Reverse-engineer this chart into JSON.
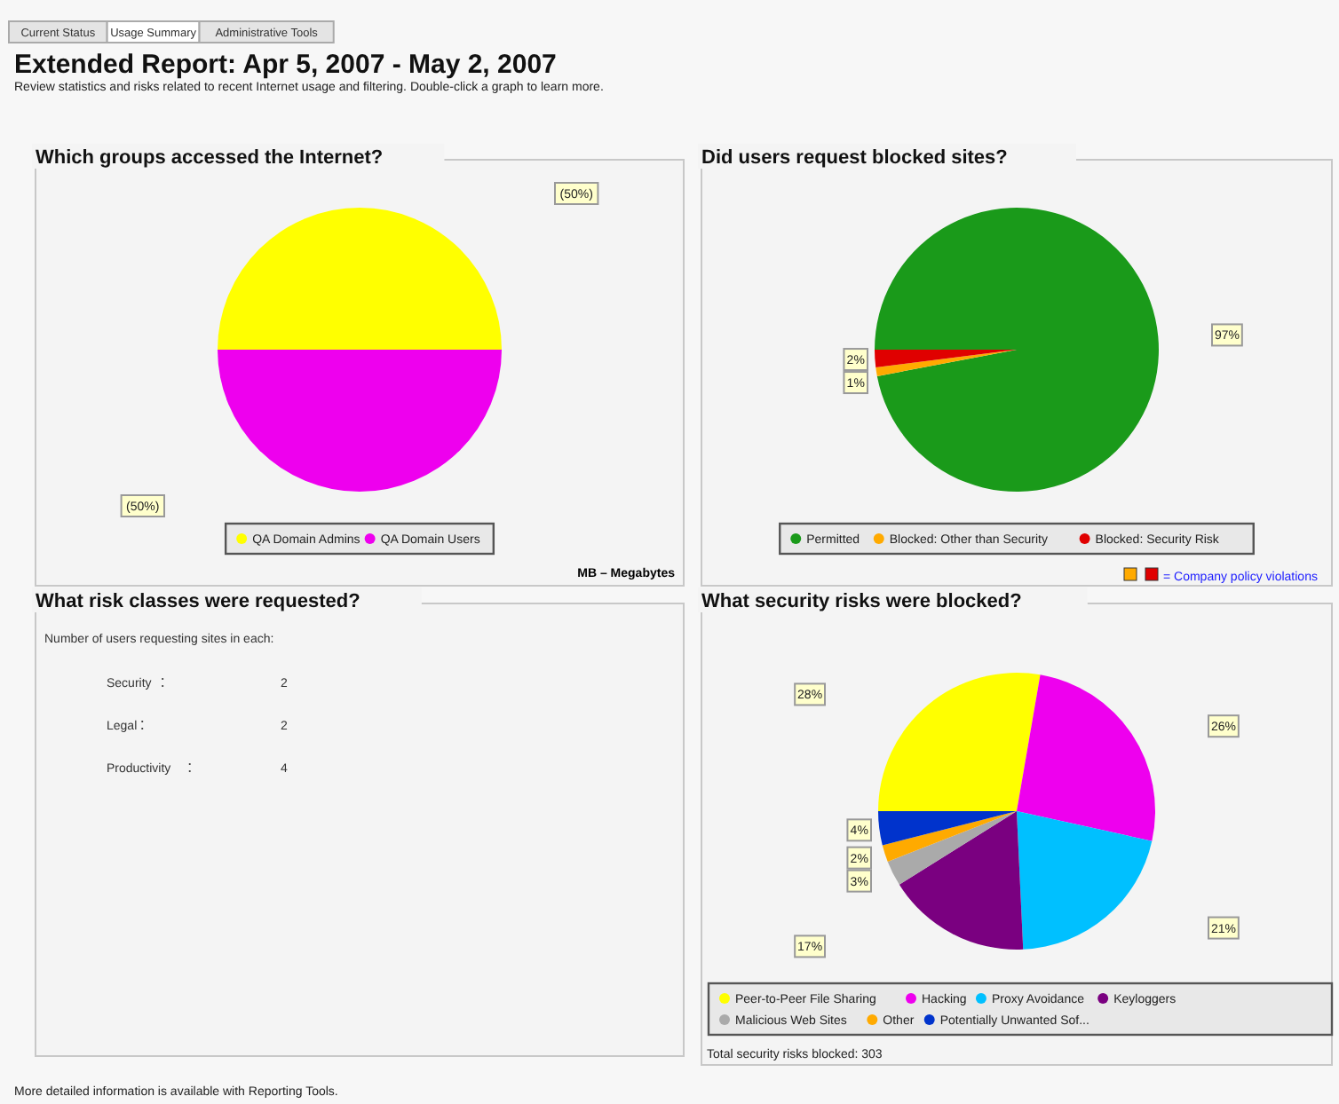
{
  "chart_data": [
    {
      "type": "other",
      "title": "Extended Report: Apr 5, 2007 - May 2, 2007",
      "subtitle": "Review statistics and risks related to recent Internet usage and filtering. Double-click a graph to learn more.",
      "annotations": [
        "Current Status",
        "Usage Summary",
        "Administrative Tools",
        "More detailed information is available with Reporting Tools."
      ]
    },
    {
      "type": "pie",
      "title": "Which groups accessed the Internet?",
      "categories": [
        "QA Domain Admins",
        "QA Domain Users"
      ],
      "values": [
        50,
        50
      ],
      "value_labels": [
        "(50%)",
        "(50%)"
      ],
      "colors": [
        "#ffff00",
        "#ee00ee"
      ],
      "legend": "bottom",
      "annotations": [
        "MB – Megabytes"
      ]
    },
    {
      "type": "pie",
      "title": "Did users request blocked sites?",
      "categories": [
        "Permitted",
        "Blocked: Other than Security",
        "Blocked: Security Risk"
      ],
      "values": [
        97,
        1,
        2
      ],
      "value_labels": [
        "97%",
        "1%",
        "2%"
      ],
      "colors": [
        "#1a9a1a",
        "#ffaa00",
        "#e00000"
      ],
      "legend": "bottom",
      "annotations": [
        "= Company policy violations"
      ]
    },
    {
      "type": "other",
      "title": "What risk classes were requested?",
      "subtitle": "Number of users requesting sites in each:",
      "categories": [
        "Security",
        "Legal",
        "Productivity"
      ],
      "values": [
        2,
        2,
        4
      ],
      "data_labels": true
    },
    {
      "type": "pie",
      "title": "What security risks were blocked?",
      "categories": [
        "Peer-to-Peer File Sharing",
        "Hacking",
        "Proxy Avoidance",
        "Keyloggers",
        "Malicious Web Sites",
        "Other",
        "Potentially Unwanted Sof..."
      ],
      "values": [
        28,
        26,
        21,
        17,
        3,
        2,
        4
      ],
      "value_labels": [
        "28%",
        "26%",
        "21%",
        "17%",
        "3%",
        "2%",
        "4%"
      ],
      "colors": [
        "#ffff00",
        "#ee00ee",
        "#00c0ff",
        "#7a0080",
        "#aaaaaa",
        "#ffaa00",
        "#0033cc"
      ],
      "legend": "bottom",
      "annotations": [
        "Total security risks blocked: 303"
      ]
    }
  ]
}
